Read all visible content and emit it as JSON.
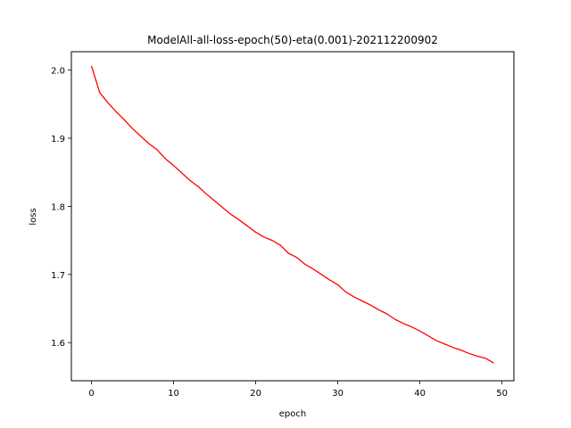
{
  "chart_data": {
    "type": "line",
    "title": "ModelAll-all-loss-epoch(50)-eta(0.001)-202112200902",
    "xlabel": "epoch",
    "ylabel": "loss",
    "xlim": [
      -2.45,
      51.45
    ],
    "ylim": [
      1.544,
      2.027
    ],
    "xticks": [
      0,
      10,
      20,
      30,
      40,
      50
    ],
    "yticks": [
      1.6,
      1.7,
      1.8,
      1.9,
      2.0
    ],
    "xtick_labels": [
      "0",
      "10",
      "20",
      "30",
      "40",
      "50"
    ],
    "ytick_labels": [
      "1.6",
      "1.7",
      "1.8",
      "1.9",
      "2.0"
    ],
    "grid": false,
    "series": [
      {
        "color": "#ff0000",
        "x": [
          0,
          1,
          2,
          3,
          4,
          5,
          6,
          7,
          8,
          9,
          10,
          11,
          12,
          13,
          14,
          15,
          16,
          17,
          18,
          19,
          20,
          21,
          22,
          23,
          24,
          25,
          26,
          27,
          28,
          29,
          30,
          31,
          32,
          33,
          34,
          35,
          36,
          37,
          38,
          39,
          40,
          41,
          42,
          43,
          44,
          45,
          46,
          47,
          48,
          49
        ],
        "y": [
          2.006,
          1.967,
          1.952,
          1.939,
          1.927,
          1.914,
          1.903,
          1.892,
          1.883,
          1.87,
          1.86,
          1.849,
          1.838,
          1.829,
          1.818,
          1.808,
          1.798,
          1.788,
          1.78,
          1.771,
          1.762,
          1.755,
          1.75,
          1.743,
          1.731,
          1.725,
          1.715,
          1.708,
          1.7,
          1.692,
          1.685,
          1.674,
          1.667,
          1.661,
          1.655,
          1.648,
          1.642,
          1.634,
          1.628,
          1.623,
          1.617,
          1.61,
          1.603,
          1.598,
          1.593,
          1.589,
          1.584,
          1.58,
          1.577,
          1.57
        ]
      }
    ]
  }
}
